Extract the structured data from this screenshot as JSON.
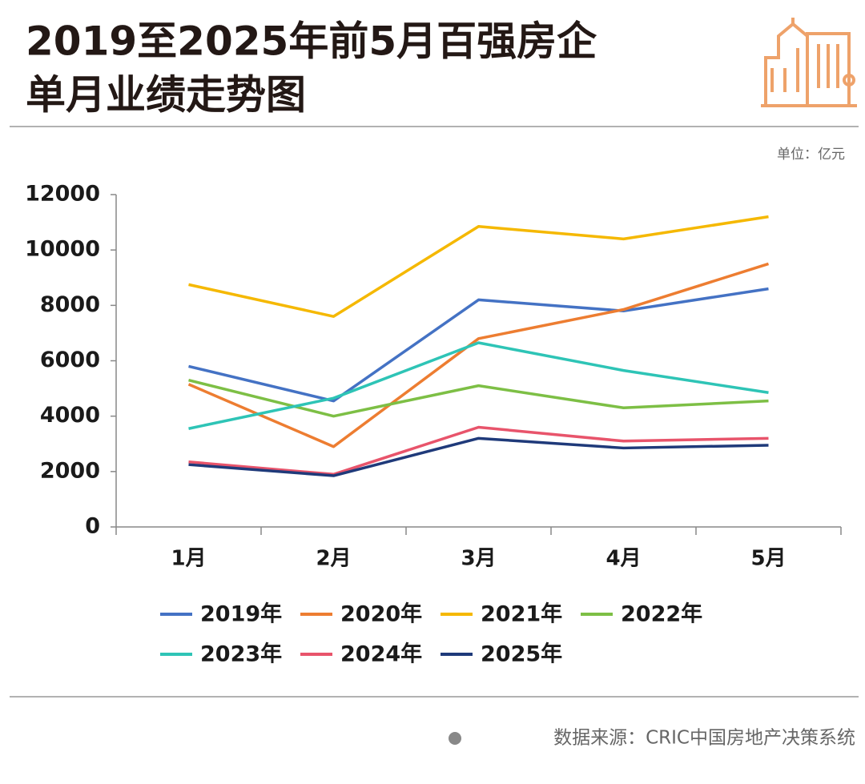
{
  "chart_data": {
    "type": "line",
    "title": [
      "2019至2025年前5月百强房企",
      "单月业绩走势图"
    ],
    "unit": "单位：亿元",
    "source": "数据来源：CRIC中国房地产决策系统",
    "categories": [
      "1月",
      "2月",
      "3月",
      "4月",
      "5月"
    ],
    "ylim": [
      0,
      12000
    ],
    "yticks": [
      0,
      2000,
      4000,
      6000,
      8000,
      10000,
      12000
    ],
    "series": [
      {
        "name": "2019年",
        "color": "#4472c4",
        "values": [
          5800,
          4550,
          8200,
          7800,
          8600
        ]
      },
      {
        "name": "2020年",
        "color": "#ed7d31",
        "values": [
          5150,
          2900,
          6800,
          7850,
          9500
        ]
      },
      {
        "name": "2021年",
        "color": "#f5b800",
        "values": [
          8750,
          7600,
          10850,
          10400,
          11200
        ]
      },
      {
        "name": "2022年",
        "color": "#7dbf45",
        "values": [
          5300,
          4000,
          5100,
          4300,
          4550
        ]
      },
      {
        "name": "2023年",
        "color": "#2ec4b6",
        "values": [
          3550,
          4650,
          6650,
          5650,
          4850
        ]
      },
      {
        "name": "2024年",
        "color": "#e8546b",
        "values": [
          2350,
          1900,
          3600,
          3100,
          3200
        ]
      },
      {
        "name": "2025年",
        "color": "#1f3a7a",
        "values": [
          2250,
          1850,
          3200,
          2850,
          2950
        ]
      }
    ]
  }
}
